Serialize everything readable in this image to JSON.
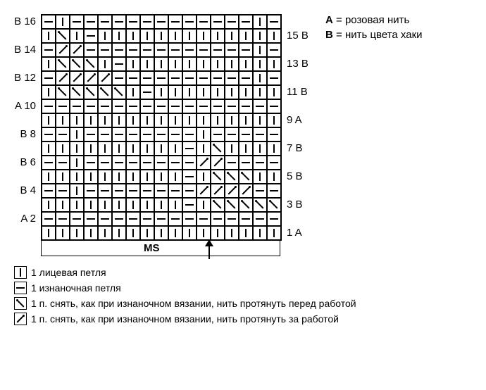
{
  "chart": {
    "cols": 17,
    "cell_size": 20,
    "border_color": "#000000",
    "background": "#ffffff",
    "symbols": {
      "K": "knit",
      "P": "purl",
      "F": "slip-front",
      "B": "slip-back"
    },
    "rows": [
      {
        "left": "B 16",
        "right": "",
        "cells": [
          "P",
          "K",
          "P",
          "P",
          "P",
          "P",
          "P",
          "P",
          "P",
          "P",
          "P",
          "P",
          "P",
          "P",
          "P",
          "K",
          "P"
        ]
      },
      {
        "left": "",
        "right": "15 B",
        "cells": [
          "K",
          "F",
          "K",
          "P",
          "K",
          "K",
          "K",
          "K",
          "K",
          "K",
          "K",
          "K",
          "K",
          "K",
          "K",
          "K",
          "K"
        ]
      },
      {
        "left": "B 14",
        "right": "",
        "cells": [
          "P",
          "B",
          "B",
          "P",
          "P",
          "P",
          "P",
          "P",
          "P",
          "P",
          "P",
          "P",
          "P",
          "P",
          "P",
          "K",
          "P"
        ]
      },
      {
        "left": "",
        "right": "13 B",
        "cells": [
          "K",
          "F",
          "F",
          "F",
          "K",
          "P",
          "K",
          "K",
          "K",
          "K",
          "K",
          "K",
          "K",
          "K",
          "K",
          "K",
          "K"
        ]
      },
      {
        "left": "B 12",
        "right": "",
        "cells": [
          "P",
          "B",
          "B",
          "B",
          "B",
          "P",
          "P",
          "P",
          "P",
          "P",
          "P",
          "P",
          "P",
          "P",
          "P",
          "K",
          "P"
        ]
      },
      {
        "left": "",
        "right": "11 B",
        "cells": [
          "K",
          "F",
          "F",
          "F",
          "F",
          "F",
          "K",
          "P",
          "K",
          "K",
          "K",
          "K",
          "K",
          "K",
          "K",
          "K",
          "K"
        ]
      },
      {
        "left": "A 10",
        "right": "",
        "cells": [
          "P",
          "P",
          "P",
          "P",
          "P",
          "P",
          "P",
          "P",
          "P",
          "P",
          "P",
          "P",
          "P",
          "P",
          "P",
          "P",
          "P"
        ]
      },
      {
        "left": "",
        "right": "9 A",
        "cells": [
          "K",
          "K",
          "K",
          "K",
          "K",
          "K",
          "K",
          "K",
          "K",
          "K",
          "K",
          "K",
          "K",
          "K",
          "K",
          "K",
          "K"
        ]
      },
      {
        "left": "B  8",
        "right": "",
        "cells": [
          "P",
          "P",
          "K",
          "P",
          "P",
          "P",
          "P",
          "P",
          "P",
          "P",
          "P",
          "K",
          "P",
          "P",
          "P",
          "P",
          "P"
        ]
      },
      {
        "left": "",
        "right": "7 B",
        "cells": [
          "K",
          "K",
          "K",
          "K",
          "K",
          "K",
          "K",
          "K",
          "K",
          "K",
          "P",
          "K",
          "F",
          "K",
          "K",
          "K",
          "K"
        ]
      },
      {
        "left": "B  6",
        "right": "",
        "cells": [
          "P",
          "P",
          "K",
          "P",
          "P",
          "P",
          "P",
          "P",
          "P",
          "P",
          "P",
          "B",
          "B",
          "P",
          "P",
          "P",
          "P"
        ]
      },
      {
        "left": "",
        "right": "5 B",
        "cells": [
          "K",
          "K",
          "K",
          "K",
          "K",
          "K",
          "K",
          "K",
          "K",
          "K",
          "P",
          "K",
          "F",
          "F",
          "F",
          "K",
          "K"
        ]
      },
      {
        "left": "B  4",
        "right": "",
        "cells": [
          "P",
          "P",
          "K",
          "P",
          "P",
          "P",
          "P",
          "P",
          "P",
          "P",
          "P",
          "B",
          "B",
          "B",
          "B",
          "P",
          "P"
        ]
      },
      {
        "left": "",
        "right": "3 B",
        "cells": [
          "K",
          "K",
          "K",
          "K",
          "K",
          "K",
          "K",
          "K",
          "K",
          "K",
          "P",
          "K",
          "F",
          "F",
          "F",
          "F",
          "F"
        ]
      },
      {
        "left": "A  2",
        "right": "",
        "cells": [
          "P",
          "P",
          "P",
          "P",
          "P",
          "P",
          "P",
          "P",
          "P",
          "P",
          "P",
          "P",
          "P",
          "P",
          "P",
          "P",
          "P"
        ]
      },
      {
        "left": "",
        "right": "1 A",
        "cells": [
          "K",
          "K",
          "K",
          "K",
          "K",
          "K",
          "K",
          "K",
          "K",
          "K",
          "K",
          "K",
          "K",
          "K",
          "K",
          "K",
          "K"
        ]
      }
    ],
    "ms_label": "MS"
  },
  "color_legend": {
    "A": {
      "letter": "A",
      "text": "= розовая нить"
    },
    "B": {
      "letter": "B",
      "text": "= нить цвета хаки"
    }
  },
  "stitch_legend": [
    {
      "symbol": "K",
      "text": "1 лицевая петля"
    },
    {
      "symbol": "P",
      "text": "1 изнаночная петля"
    },
    {
      "symbol": "F",
      "text": "1 п. снять, как при изнаночном вязании,  нить протянуть перед работой"
    },
    {
      "symbol": "B",
      "text": "1 п. снять, как при изнаночном вязании,  нить протянуть за  работой"
    }
  ]
}
